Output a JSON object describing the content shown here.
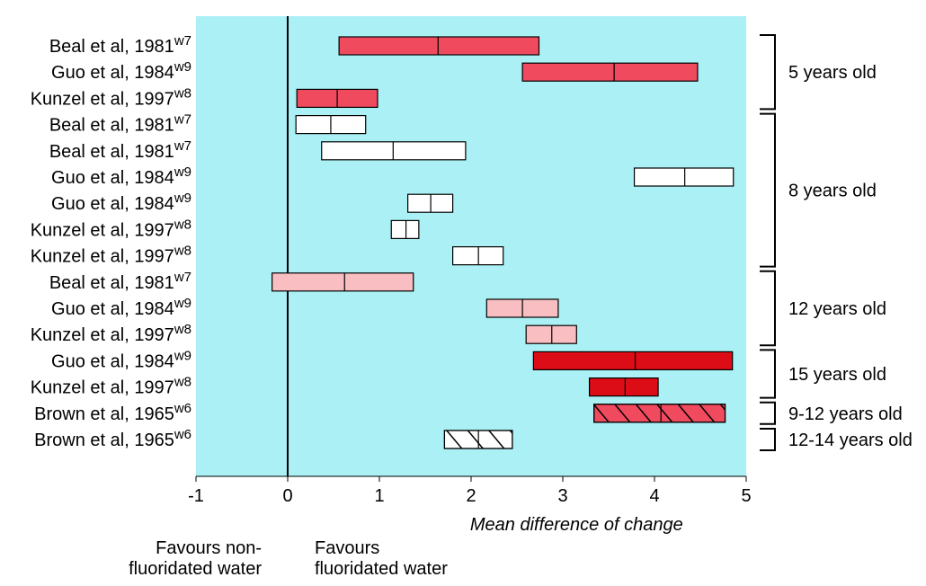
{
  "chart_data": {
    "type": "forest",
    "xlim": [
      -1,
      5
    ],
    "x_ticks": [
      "-1",
      "0",
      "1",
      "2",
      "3",
      "4",
      "5"
    ],
    "xlabel": "Mean difference of change",
    "left_note": "Favours non-\nfluoridated water",
    "right_note": "Favours\nfluoridated water",
    "colors": {
      "background": "#aaf0f4",
      "dark_red": "#dd0d17",
      "red": "#f04a5e",
      "pink": "#f9bec1",
      "white": "#ffffff"
    },
    "rows": [
      {
        "study": "Beal et al, 1981",
        "ref": "w7",
        "low": 0.56,
        "mean": 1.64,
        "high": 2.74,
        "fill": "red",
        "hatch": false
      },
      {
        "study": "Guo et al, 1984",
        "ref": "w9",
        "low": 2.56,
        "mean": 3.56,
        "high": 4.47,
        "fill": "red",
        "hatch": false
      },
      {
        "study": "Kunzel et al, 1997",
        "ref": "w8",
        "low": 0.1,
        "mean": 0.54,
        "high": 0.98,
        "fill": "red",
        "hatch": false
      },
      {
        "study": "Beal et al, 1981",
        "ref": "w7",
        "low": 0.09,
        "mean": 0.47,
        "high": 0.85,
        "fill": "white",
        "hatch": false
      },
      {
        "study": "Beal et al, 1981",
        "ref": "w7",
        "low": 0.37,
        "mean": 1.15,
        "high": 1.94,
        "fill": "white",
        "hatch": false
      },
      {
        "study": "Guo et al, 1984",
        "ref": "w9",
        "low": 3.78,
        "mean": 4.33,
        "high": 4.86,
        "fill": "white",
        "hatch": false
      },
      {
        "study": "Guo et al, 1984",
        "ref": "w9",
        "low": 1.31,
        "mean": 1.56,
        "high": 1.8,
        "fill": "white",
        "hatch": false
      },
      {
        "study": "Kunzel et al, 1997",
        "ref": "w8",
        "low": 1.13,
        "mean": 1.29,
        "high": 1.43,
        "fill": "white",
        "hatch": false
      },
      {
        "study": "Kunzel et al, 1997",
        "ref": "w8",
        "low": 1.8,
        "mean": 2.08,
        "high": 2.35,
        "fill": "white",
        "hatch": false
      },
      {
        "study": "Beal et al, 1981",
        "ref": "w7",
        "low": -0.17,
        "mean": 0.62,
        "high": 1.37,
        "fill": "pink",
        "hatch": false
      },
      {
        "study": "Guo et al, 1984",
        "ref": "w9",
        "low": 2.17,
        "mean": 2.56,
        "high": 2.95,
        "fill": "pink",
        "hatch": false
      },
      {
        "study": "Kunzel et al, 1997",
        "ref": "w8",
        "low": 2.6,
        "mean": 2.88,
        "high": 3.15,
        "fill": "pink",
        "hatch": false
      },
      {
        "study": "Guo et al, 1984",
        "ref": "w9",
        "low": 2.68,
        "mean": 3.79,
        "high": 4.85,
        "fill": "dark_red",
        "hatch": false
      },
      {
        "study": "Kunzel et al, 1997",
        "ref": "w8",
        "low": 3.29,
        "mean": 3.68,
        "high": 4.04,
        "fill": "dark_red",
        "hatch": false
      },
      {
        "study": "Brown et al, 1965",
        "ref": "w6",
        "low": 3.34,
        "mean": 4.07,
        "high": 4.77,
        "fill": "red",
        "hatch": true
      },
      {
        "study": "Brown et al, 1965",
        "ref": "w6",
        "low": 1.71,
        "mean": 2.08,
        "high": 2.45,
        "fill": "white",
        "hatch": true
      }
    ],
    "groups": [
      {
        "label": "5 years old",
        "first_row": 0,
        "last_row": 2
      },
      {
        "label": "8 years old",
        "first_row": 3,
        "last_row": 8
      },
      {
        "label": "12 years old",
        "first_row": 9,
        "last_row": 11
      },
      {
        "label": "15 years old",
        "first_row": 12,
        "last_row": 13
      },
      {
        "label": "9-12 years old",
        "first_row": 14,
        "last_row": 14
      },
      {
        "label": "12-14 years old",
        "first_row": 15,
        "last_row": 15
      }
    ]
  }
}
